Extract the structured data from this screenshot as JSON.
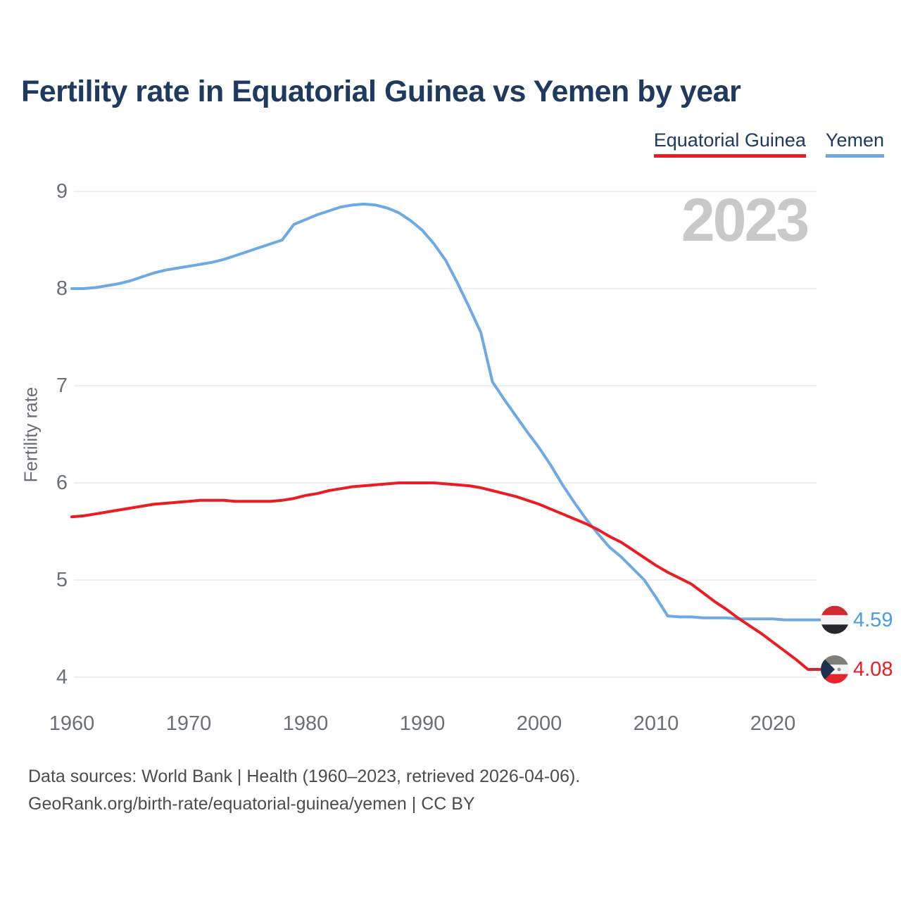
{
  "title": "Fertility rate in Equatorial Guinea vs Yemen by year",
  "watermark": "2023",
  "legend": {
    "items": [
      {
        "label": "Equatorial Guinea",
        "color": "#ec1c24"
      },
      {
        "label": "Yemen",
        "color": "#6da9e4"
      }
    ]
  },
  "footer": {
    "line1": "Data sources: World Bank | Health (1960–2023, retrieved 2026-04-06).",
    "line2": "GeoRank.org/birth-rate/equatorial-guinea/yemen | CC BY"
  },
  "chart_data": {
    "type": "line",
    "title": "Fertility rate in Equatorial Guinea vs Yemen by year",
    "xlabel": "",
    "ylabel": "Fertility rate",
    "xlim": [
      1960,
      2023
    ],
    "ylim": [
      4,
      9
    ],
    "x_ticks": [
      1960,
      1970,
      1980,
      1990,
      2000,
      2010,
      2020
    ],
    "y_ticks": [
      4,
      5,
      6,
      7,
      8,
      9
    ],
    "grid": "horizontal",
    "legend_position": "top-right",
    "annotation_year": "2023",
    "x": [
      1960,
      1961,
      1962,
      1963,
      1964,
      1965,
      1966,
      1967,
      1968,
      1969,
      1970,
      1971,
      1972,
      1973,
      1974,
      1975,
      1976,
      1977,
      1978,
      1979,
      1980,
      1981,
      1982,
      1983,
      1984,
      1985,
      1986,
      1987,
      1988,
      1989,
      1990,
      1991,
      1992,
      1993,
      1994,
      1995,
      1996,
      1997,
      1998,
      1999,
      2000,
      2001,
      2002,
      2003,
      2004,
      2005,
      2006,
      2007,
      2008,
      2009,
      2010,
      2011,
      2012,
      2013,
      2014,
      2015,
      2016,
      2017,
      2018,
      2019,
      2020,
      2021,
      2022,
      2023
    ],
    "series": [
      {
        "name": "Equatorial Guinea",
        "color": "#ec1c24",
        "end_label": "4.08",
        "end_value": 4.08,
        "values": [
          5.65,
          5.66,
          5.68,
          5.7,
          5.72,
          5.74,
          5.76,
          5.78,
          5.79,
          5.8,
          5.81,
          5.82,
          5.82,
          5.82,
          5.81,
          5.81,
          5.81,
          5.81,
          5.82,
          5.84,
          5.87,
          5.89,
          5.92,
          5.94,
          5.96,
          5.97,
          5.98,
          5.99,
          6.0,
          6.0,
          6.0,
          6.0,
          5.99,
          5.98,
          5.97,
          5.95,
          5.92,
          5.89,
          5.86,
          5.82,
          5.78,
          5.73,
          5.68,
          5.63,
          5.58,
          5.52,
          5.45,
          5.39,
          5.31,
          5.23,
          5.15,
          5.08,
          5.02,
          4.96,
          4.87,
          4.78,
          4.7,
          4.61,
          4.53,
          4.45,
          4.36,
          4.27,
          4.18,
          4.08
        ]
      },
      {
        "name": "Yemen",
        "color": "#6da9e4",
        "end_label": "4.59",
        "end_value": 4.59,
        "values": [
          8.0,
          8.0,
          8.01,
          8.03,
          8.05,
          8.08,
          8.12,
          8.16,
          8.19,
          8.21,
          8.23,
          8.25,
          8.27,
          8.3,
          8.34,
          8.38,
          8.42,
          8.46,
          8.5,
          8.66,
          8.71,
          8.76,
          8.8,
          8.84,
          8.86,
          8.87,
          8.86,
          8.83,
          8.78,
          8.7,
          8.6,
          8.46,
          8.29,
          8.06,
          7.81,
          7.55,
          7.04,
          6.86,
          6.69,
          6.52,
          6.36,
          6.18,
          5.98,
          5.8,
          5.63,
          5.48,
          5.34,
          5.24,
          5.12,
          5.0,
          4.82,
          4.63,
          4.62,
          4.62,
          4.61,
          4.61,
          4.61,
          4.6,
          4.6,
          4.6,
          4.6,
          4.59,
          4.59,
          4.59
        ]
      }
    ]
  }
}
